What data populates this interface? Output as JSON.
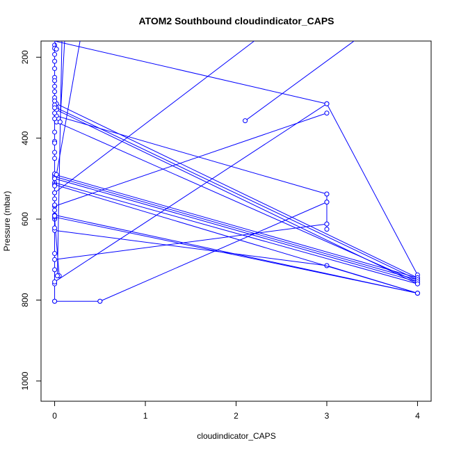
{
  "chart_data": {
    "type": "line",
    "title": "ATOM2 Southbound cloudindicator_CAPS",
    "xlabel": "cloudindicator_CAPS",
    "ylabel": "Pressure (mbar)",
    "xlim": [
      -0.15,
      4.15
    ],
    "ylim": [
      1050,
      160
    ],
    "y_reversed": true,
    "grid": false,
    "legend": "none",
    "color": "#0000ff",
    "x_ticks": [
      0,
      1,
      2,
      3,
      4
    ],
    "y_ticks": [
      200,
      400,
      600,
      800,
      1000
    ],
    "series": [
      {
        "x": [
          0,
          0,
          0,
          0,
          0,
          0.05
        ],
        "y": [
          803,
          760,
          725,
          685,
          600,
          740
        ]
      },
      {
        "x": [
          0,
          0.5
        ],
        "y": [
          803,
          803
        ]
      },
      {
        "x": [
          0.5,
          3
        ],
        "y": [
          803,
          558
        ]
      },
      {
        "x": [
          3,
          3,
          3,
          3
        ],
        "y": [
          538,
          558,
          612,
          625
        ]
      },
      {
        "x": [
          0,
          3
        ],
        "y": [
          628,
          715
        ]
      },
      {
        "x": [
          3,
          4
        ],
        "y": [
          715,
          783
        ]
      },
      {
        "x": [
          0,
          3
        ],
        "y": [
          700,
          612
        ]
      },
      {
        "x": [
          0,
          3
        ],
        "y": [
          755,
          315
        ]
      },
      {
        "x": [
          3,
          4
        ],
        "y": [
          315,
          738
        ]
      },
      {
        "x": [
          0,
          3
        ],
        "y": [
          568,
          338
        ]
      },
      {
        "x": [
          2.1,
          3.3
        ],
        "y": [
          357,
          160
        ]
      },
      {
        "x": [
          0.02,
          3
        ],
        "y": [
          345,
          538
        ]
      },
      {
        "x": [
          0,
          4
        ],
        "y": [
          590,
          783
        ]
      },
      {
        "x": [
          0,
          4
        ],
        "y": [
          595,
          783
        ]
      },
      {
        "x": [
          0,
          4
        ],
        "y": [
          490,
          745
        ]
      },
      {
        "x": [
          0,
          4
        ],
        "y": [
          495,
          750
        ]
      },
      {
        "x": [
          0,
          4
        ],
        "y": [
          500,
          755
        ]
      },
      {
        "x": [
          0,
          4
        ],
        "y": [
          510,
          760
        ]
      },
      {
        "x": [
          0,
          4
        ],
        "y": [
          515,
          783
        ]
      },
      {
        "x": [
          0.02,
          4
        ],
        "y": [
          315,
          745
        ]
      },
      {
        "x": [
          0.02,
          4
        ],
        "y": [
          325,
          750
        ]
      },
      {
        "x": [
          0.02,
          4
        ],
        "y": [
          360,
          755
        ]
      },
      {
        "x": [
          0.02,
          4
        ],
        "y": [
          330,
          760
        ]
      },
      {
        "x": [
          0,
          3
        ],
        "y": [
          160,
          315
        ]
      },
      {
        "x": [
          0,
          2.2
        ],
        "y": [
          535,
          160
        ]
      },
      {
        "x": [
          0,
          0,
          0,
          0,
          0,
          0,
          0,
          0,
          0,
          0,
          0,
          0,
          0,
          0,
          0,
          0,
          0,
          0,
          0,
          0,
          0,
          0,
          0,
          0,
          0,
          0,
          0,
          0,
          0
        ],
        "y": [
          170,
          178,
          193,
          210,
          228,
          250,
          258,
          272,
          285,
          300,
          308,
          318,
          325,
          338,
          352,
          385,
          408,
          412,
          435,
          450,
          488,
          500,
          518,
          535,
          550,
          565,
          578,
          592,
          622
        ]
      },
      {
        "x": [
          0.03,
          0.08
        ],
        "y": [
          740,
          160
        ]
      },
      {
        "x": [
          0.06,
          0.11
        ],
        "y": [
          360,
          160
        ]
      },
      {
        "x": [
          0.02,
          0.28
        ],
        "y": [
          490,
          160
        ]
      },
      {
        "x": [
          0,
          0.02
        ],
        "y": [
          160,
          180
        ]
      }
    ]
  }
}
